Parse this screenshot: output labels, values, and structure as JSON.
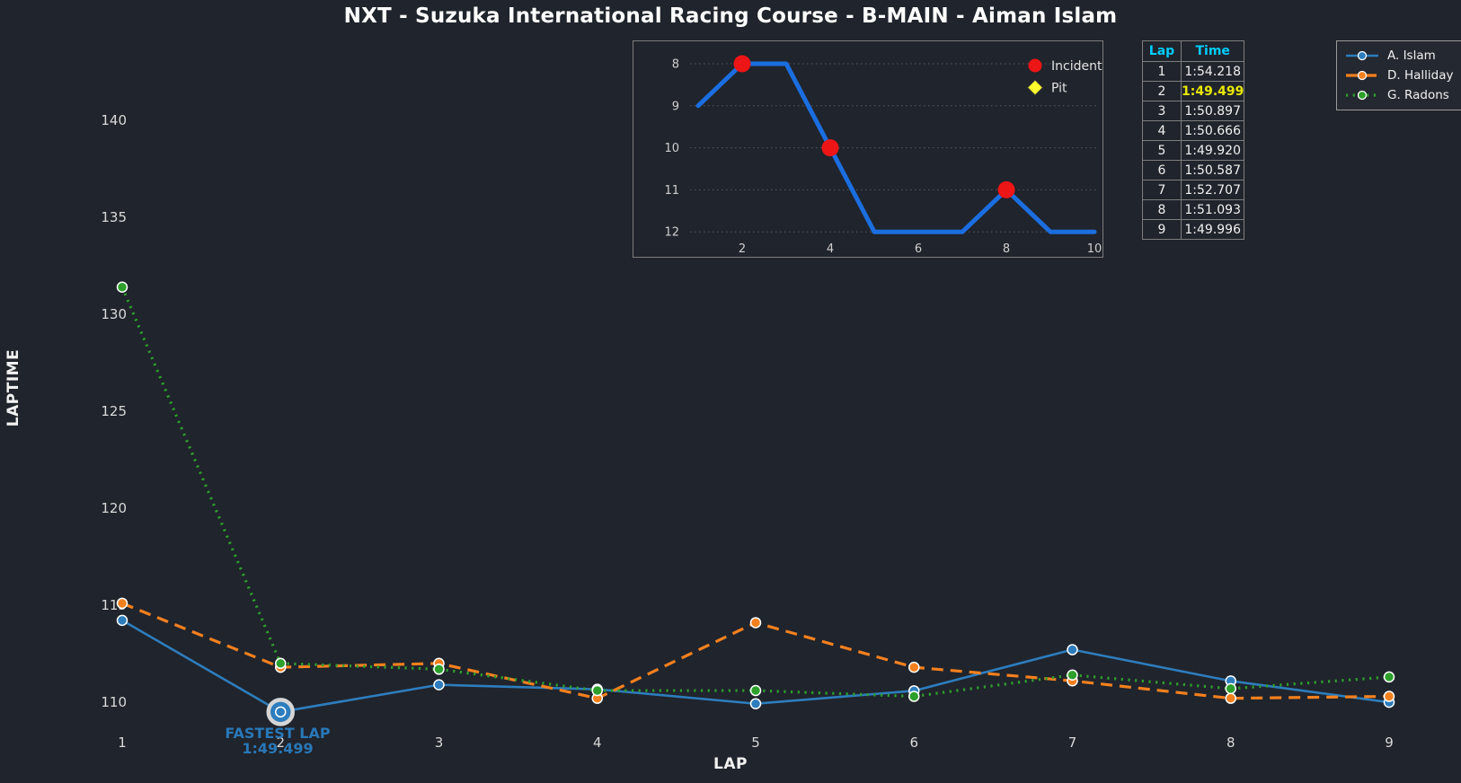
{
  "title": "NXT - Suzuka International Racing Course - B-MAIN - Aiman Islam",
  "colors": {
    "background": "#20242c",
    "islam_blue": "#2d7dbd",
    "halliday_orange": "#f5801e",
    "radons_green": "#2da02c",
    "incident_red": "#ed1515",
    "pit_yellow": "#ffff2e",
    "inset_line_blue": "#1b6ee0",
    "table_header_cyan": "#00ccff",
    "fastest_yellow": "#e8e800",
    "annotation_blue": "#2878b8",
    "marker_edge_white": "#ffffff",
    "fastest_ring_gray": "#d6d6d6"
  },
  "legend": {
    "items": [
      {
        "label": "A. Islam"
      },
      {
        "label": "D. Halliday"
      },
      {
        "label": "G. Radons"
      }
    ]
  },
  "table": {
    "headers": [
      "Lap",
      "Time"
    ],
    "rows": [
      {
        "lap": "1",
        "time": "1:54.218",
        "fastest": false
      },
      {
        "lap": "2",
        "time": "1:49.499",
        "fastest": true
      },
      {
        "lap": "3",
        "time": "1:50.897",
        "fastest": false
      },
      {
        "lap": "4",
        "time": "1:50.666",
        "fastest": false
      },
      {
        "lap": "5",
        "time": "1:49.920",
        "fastest": false
      },
      {
        "lap": "6",
        "time": "1:50.587",
        "fastest": false
      },
      {
        "lap": "7",
        "time": "1:52.707",
        "fastest": false
      },
      {
        "lap": "8",
        "time": "1:51.093",
        "fastest": false
      },
      {
        "lap": "9",
        "time": "1:49.996",
        "fastest": false
      }
    ]
  },
  "annotation": {
    "line1": "FASTEST LAP",
    "line2": "1:49.499",
    "lap": 2,
    "value": 109.499
  },
  "chart_data": [
    {
      "id": "laptime-main",
      "type": "line",
      "title": "NXT - Suzuka International Racing Course - B-MAIN - Aiman Islam",
      "xlabel": "LAP",
      "ylabel": "LAPTIME",
      "x": [
        1,
        2,
        3,
        4,
        5,
        6,
        7,
        8,
        9
      ],
      "yticks": [
        110,
        115,
        120,
        125,
        130,
        135,
        140
      ],
      "ylim": [
        107.6,
        144.0
      ],
      "grid": false,
      "legend_position": "top-right",
      "series": [
        {
          "name": "A. Islam",
          "style": "solid",
          "color_key": "islam_blue",
          "values": [
            114.218,
            109.499,
            110.897,
            110.666,
            109.92,
            110.587,
            112.707,
            111.093,
            109.996
          ]
        },
        {
          "name": "D. Halliday",
          "style": "dashed",
          "color_key": "halliday_orange",
          "values": [
            115.1,
            111.8,
            112.0,
            110.2,
            114.1,
            111.8,
            111.1,
            110.2,
            110.3
          ]
        },
        {
          "name": "G. Radons",
          "style": "dotted",
          "color_key": "radons_green",
          "values": [
            131.4,
            112.0,
            111.7,
            110.6,
            110.6,
            110.3,
            111.4,
            110.7,
            111.3
          ]
        }
      ],
      "fastest_lap": {
        "lap": 2,
        "value": 109.499,
        "time": "1:49.499"
      }
    },
    {
      "id": "position-inset",
      "type": "line",
      "x": [
        1,
        2,
        3,
        4,
        5,
        6,
        7,
        8,
        9,
        10
      ],
      "values": [
        9,
        8,
        8,
        10,
        12,
        12,
        12,
        11,
        12,
        12
      ],
      "y_inverted": true,
      "yticks": [
        8,
        9,
        10,
        11,
        12
      ],
      "xticks": [
        2,
        4,
        6,
        8,
        10
      ],
      "grid": "horizontal-dotted",
      "markers": {
        "incident_laps": [
          2,
          4,
          8
        ],
        "pit_laps": []
      },
      "legend": [
        {
          "label": "Incident",
          "marker": "circle",
          "color_key": "incident_red"
        },
        {
          "label": "Pit",
          "marker": "diamond",
          "color_key": "pit_yellow"
        }
      ]
    }
  ]
}
